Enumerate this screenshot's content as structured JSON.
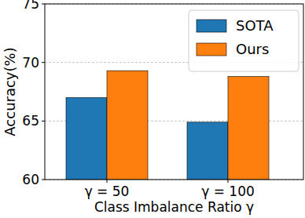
{
  "chart_data": {
    "type": "bar",
    "x_label": "Class Imbalance Ratio γ",
    "y_label": "Accuracy(%)",
    "categories": [
      "γ = 50",
      "γ = 100"
    ],
    "series": [
      {
        "name": "SOTA",
        "color": "#1f77b4",
        "values": [
          67.0,
          64.9
        ]
      },
      {
        "name": "Ours",
        "color": "#ff7f0e",
        "values": [
          69.3,
          68.8
        ]
      }
    ],
    "ylim": [
      60,
      75
    ],
    "yticks": [
      60,
      65,
      70,
      75
    ],
    "grid": true,
    "legend": "upper right"
  }
}
